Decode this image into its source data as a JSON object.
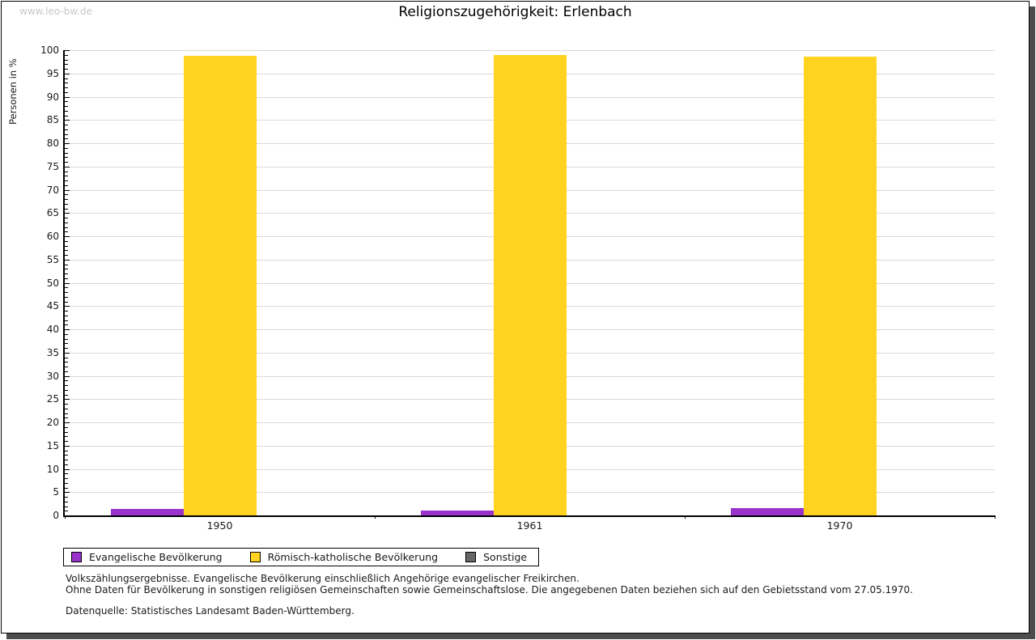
{
  "watermark": "www.leo-bw.de",
  "title": "Religionszugehörigkeit: Erlenbach",
  "chart_data": {
    "type": "bar",
    "title": "Religionszugehörigkeit: Erlenbach",
    "xlabel": "",
    "ylabel": "Personen in %",
    "categories": [
      "1950",
      "1961",
      "1970"
    ],
    "series": [
      {
        "name": "Evangelische Bevölkerung",
        "color": "#9933cc",
        "values": [
          1.4,
          1.1,
          1.5
        ]
      },
      {
        "name": "Römisch-katholische Bevölkerung",
        "color": "#ffd320",
        "values": [
          98.7,
          98.9,
          98.6
        ]
      },
      {
        "name": "Sonstige",
        "color": "#666666",
        "values": [
          0,
          0,
          0
        ]
      }
    ],
    "ylim": [
      0,
      100
    ],
    "ytick_major": 5,
    "ytick_minor": 1,
    "grid": true,
    "legend_position": "bottom-left"
  },
  "footnotes": {
    "line1": "Volkszählungsergebnisse. Evangelische Bevölkerung einschließlich Angehörige evangelischer Freikirchen.",
    "line2": "Ohne Daten für Bevölkerung in sonstigen religiösen Gemeinschaften sowie Gemeinschaftslose. Die angegebenen Daten beziehen sich auf den Gebietsstand vom 27.05.1970.",
    "source": "Datenquelle: Statistisches Landesamt Baden-Württemberg."
  }
}
